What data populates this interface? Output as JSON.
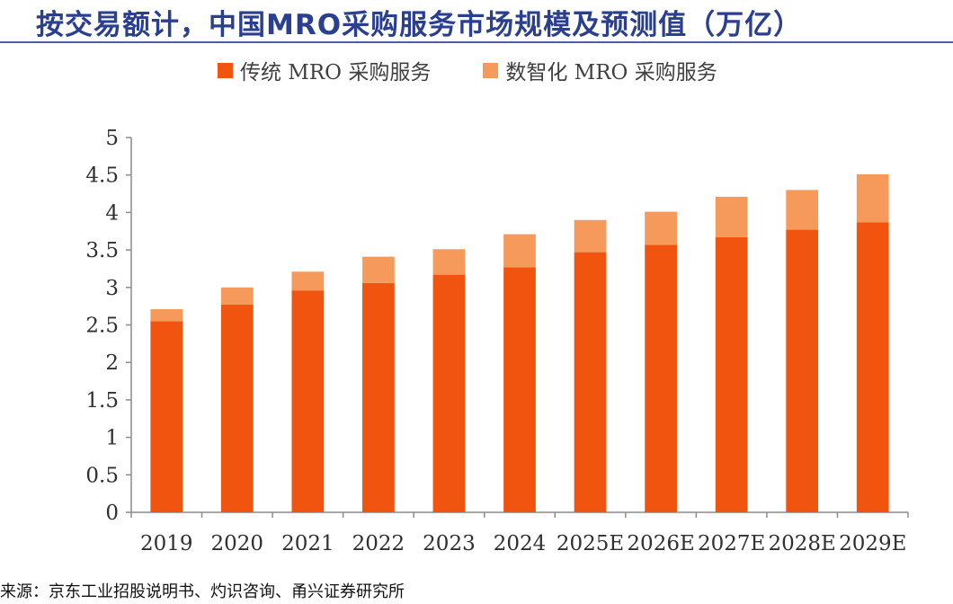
{
  "title": "按交易额计，中国MRO采购服务市场规模及预测值（万亿）",
  "source": "来源：京东工业招股说明书、灼识咨询、甬兴证券研究所",
  "colors": {
    "traditional": "#f0540f",
    "digital": "#f59a5a",
    "title": "#2a3f8f"
  },
  "chart_data": {
    "type": "bar",
    "stacked": true,
    "categories": [
      "2019",
      "2020",
      "2021",
      "2022",
      "2023",
      "2024",
      "2025E",
      "2026E",
      "2027E",
      "2028E",
      "2029E"
    ],
    "series": [
      {
        "name": "传统 MRO 采购服务",
        "values": [
          2.55,
          2.77,
          2.96,
          3.06,
          3.17,
          3.27,
          3.47,
          3.57,
          3.67,
          3.77,
          3.87
        ]
      },
      {
        "name": "数智化 MRO 采购服务",
        "values": [
          0.16,
          0.23,
          0.25,
          0.35,
          0.34,
          0.44,
          0.43,
          0.44,
          0.54,
          0.53,
          0.64
        ]
      }
    ],
    "ylim": [
      0,
      5
    ],
    "yticks": [
      "0",
      "0.5",
      "1",
      "1.5",
      "2",
      "2.5",
      "3",
      "3.5",
      "4",
      "4.5",
      "5"
    ],
    "grid": false,
    "legend_position": "top"
  }
}
